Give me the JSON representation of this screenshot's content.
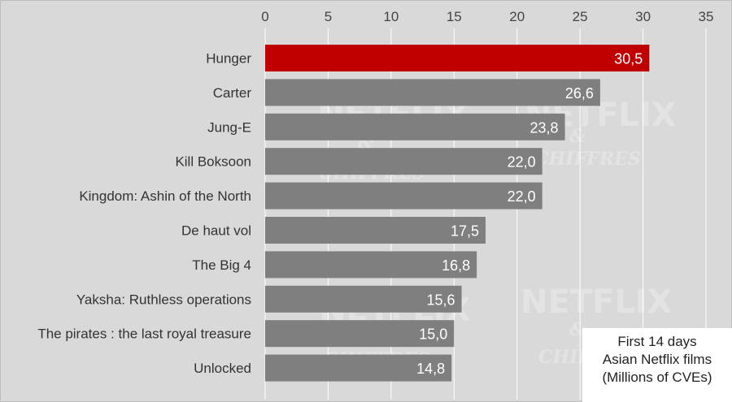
{
  "chart_data": {
    "type": "bar",
    "orientation": "horizontal",
    "categories": [
      "Hunger",
      "Carter",
      "Jung-E",
      "Kill Boksoon",
      "Kingdom: Ashin of the North",
      "De haut vol",
      "The Big 4",
      "Yaksha: Ruthless operations",
      "The pirates : the last royal treasure",
      "Unlocked"
    ],
    "values": [
      30.5,
      26.6,
      23.8,
      22.0,
      22.0,
      17.5,
      16.8,
      15.6,
      15.0,
      14.8
    ],
    "value_labels": [
      "30,5",
      "26,6",
      "23,8",
      "22,0",
      "22,0",
      "17,5",
      "16,8",
      "15,6",
      "15,0",
      "14,8"
    ],
    "xlim": [
      0,
      35
    ],
    "xticks": [
      0,
      5,
      10,
      15,
      20,
      25,
      30,
      35
    ],
    "x_axis_position": "top",
    "grid": true,
    "legend_position": "bottom-right",
    "highlight_index": 0,
    "colors": {
      "highlight": "#c00000",
      "bar": "#7f7f7f",
      "background": "#d9d9d9",
      "grid": "#ffffff"
    }
  },
  "legend": {
    "line1": "First 14 days",
    "line2": "Asian Netflix films",
    "line3": "(Millions of CVEs)"
  },
  "watermark": {
    "title": "NETFLIX",
    "amp": "&",
    "sub": "CHIFFRES"
  }
}
